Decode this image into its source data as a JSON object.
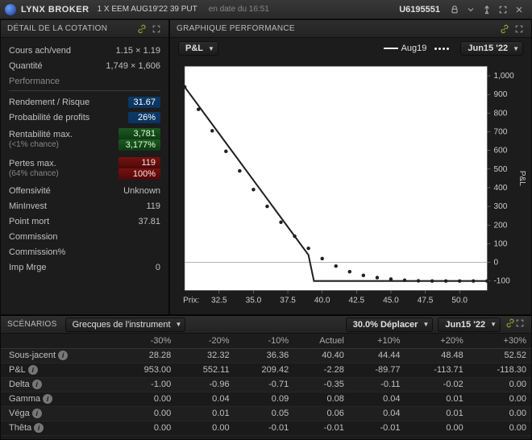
{
  "header": {
    "broker": "LYNX BROKER",
    "instrument": "1 X EEM AUG19'22 39 PUT",
    "timestamp": "en date du 16:51",
    "account": "U6195551"
  },
  "quote_panel": {
    "title": "DÉTAIL DE LA COTATION",
    "bid_ask_label": "Cours ach/vend",
    "bid_ask_value": "1.15 × 1.19",
    "size_label": "Quantité",
    "size_value": "1,749 × 1,606",
    "performance_label": "Performance",
    "rows": [
      {
        "label": "Rendement / Risque",
        "value": "31.67",
        "style": "blue"
      },
      {
        "label": "Probabilité de profits",
        "value": "26%",
        "style": "blue"
      },
      {
        "label": "Rentabilité max.",
        "sub": "(<1% chance)",
        "value": "3,781",
        "value2": "3,177%",
        "style": "green"
      },
      {
        "label": "Pertes max.",
        "sub": "(64% chance)",
        "value": "119",
        "value2": "100%",
        "style": "red"
      },
      {
        "label": "Offensivité",
        "value": "Unknown"
      },
      {
        "label": "MinInvest",
        "value": "119"
      },
      {
        "label": "Point mort",
        "value": "37.81"
      },
      {
        "label": "Commission",
        "value": ""
      },
      {
        "label": "Commission%",
        "value": ""
      },
      {
        "label": "Imp Mrge",
        "value": "0"
      }
    ]
  },
  "chart_panel": {
    "title": "GRAPHIQUE PERFORMANCE",
    "series_selector": "P&L",
    "legend_line": "Aug19",
    "legend_dots": "Jun15 '22",
    "ylabel": "P&L",
    "xlabel": "Prix:",
    "xticks": [
      "32.5",
      "35.0",
      "37.5",
      "40.0",
      "42.5",
      "45.0",
      "47.5",
      "50.0"
    ],
    "yticks": [
      "1,000",
      "900",
      "800",
      "700",
      "600",
      "500",
      "400",
      "300",
      "200",
      "100",
      "0",
      "-100"
    ],
    "xlim": [
      30,
      52
    ],
    "ylim": [
      -150,
      1050
    ],
    "solid": [
      [
        30,
        940
      ],
      [
        31,
        840
      ],
      [
        32,
        740
      ],
      [
        33,
        640
      ],
      [
        34,
        540
      ],
      [
        35,
        440
      ],
      [
        36,
        340
      ],
      [
        37,
        240
      ],
      [
        38,
        140
      ],
      [
        39,
        40
      ],
      [
        39.4,
        -100
      ],
      [
        52,
        -100
      ]
    ],
    "dotted": [
      [
        30,
        940
      ],
      [
        31,
        820
      ],
      [
        32,
        705
      ],
      [
        33,
        595
      ],
      [
        34,
        490
      ],
      [
        35,
        390
      ],
      [
        36,
        300
      ],
      [
        37,
        215
      ],
      [
        38,
        140
      ],
      [
        39,
        75
      ],
      [
        40,
        20
      ],
      [
        41,
        -20
      ],
      [
        42,
        -50
      ],
      [
        43,
        -70
      ],
      [
        44,
        -82
      ],
      [
        45,
        -90
      ],
      [
        46,
        -96
      ],
      [
        47,
        -99
      ],
      [
        48,
        -100
      ],
      [
        49,
        -100
      ],
      [
        50,
        -100
      ],
      [
        51,
        -100
      ],
      [
        52,
        -100
      ]
    ],
    "colors": {
      "bg": "#ffffff",
      "grid": "#f5f5f5",
      "axis": "#999999",
      "line": "#202020",
      "dots": "#202020",
      "zero": "#aaaaaa"
    }
  },
  "scenarios": {
    "title": "SCÉNARIOS",
    "dropdown": "Grecques de l'instrument",
    "move_label": "30.0% Déplacer",
    "date_label": "Jun15 '22",
    "columns": [
      "",
      "-30%",
      "-20%",
      "-10%",
      "Actuel",
      "+10%",
      "+20%",
      "+30%"
    ],
    "rows": [
      {
        "label": "Sous-jacent",
        "info": true,
        "vals": [
          "28.28",
          "32.32",
          "36.36",
          "40.40",
          "44.44",
          "48.48",
          "52.52"
        ]
      },
      {
        "label": "P&L",
        "info": true,
        "vals": [
          "953.00",
          "552.11",
          "209.42",
          "-2.28",
          "-89.77",
          "-113.71",
          "-118.30"
        ]
      },
      {
        "label": "Delta",
        "info": true,
        "vals": [
          "-1.00",
          "-0.96",
          "-0.71",
          "-0.35",
          "-0.11",
          "-0.02",
          "0.00"
        ]
      },
      {
        "label": "Gamma",
        "info": true,
        "vals": [
          "0.00",
          "0.04",
          "0.09",
          "0.08",
          "0.04",
          "0.01",
          "0.00"
        ]
      },
      {
        "label": "Véga",
        "info": true,
        "vals": [
          "0.00",
          "0.01",
          "0.05",
          "0.06",
          "0.04",
          "0.01",
          "0.00"
        ]
      },
      {
        "label": "Thêta",
        "info": true,
        "vals": [
          "0.00",
          "0.00",
          "-0.01",
          "-0.01",
          "-0.01",
          "0.00",
          "0.00"
        ]
      }
    ]
  }
}
